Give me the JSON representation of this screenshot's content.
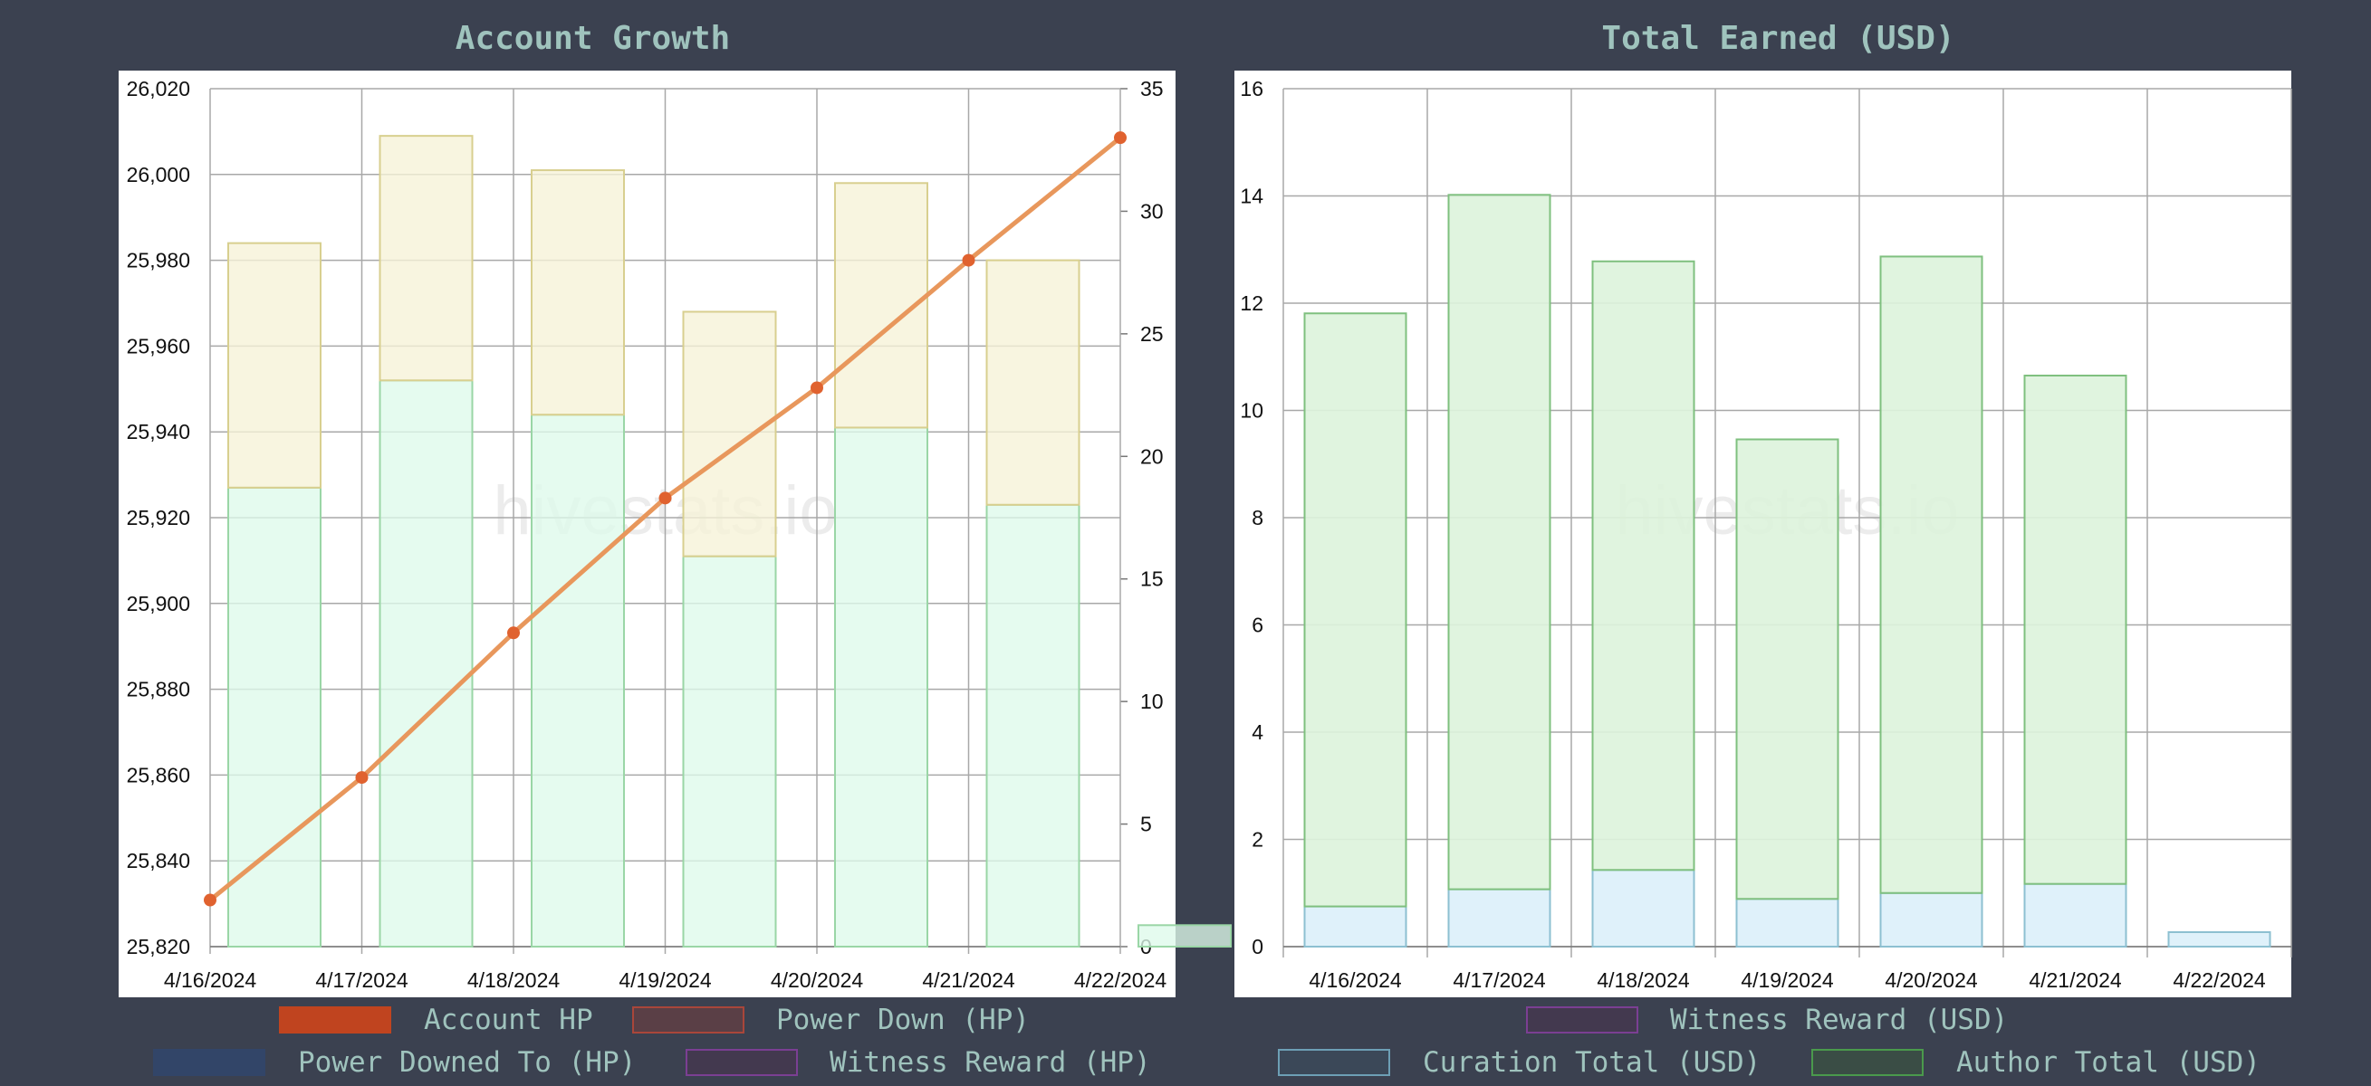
{
  "watermark": "hivestats.io",
  "chart_data": [
    {
      "type": "bar",
      "title": "Account Growth",
      "categories": [
        "4/16/2024",
        "4/17/2024",
        "4/18/2024",
        "4/19/2024",
        "4/20/2024",
        "4/21/2024",
        "4/22/2024"
      ],
      "y_left": {
        "ylim": [
          25820,
          26020
        ],
        "ticks": [
          "25,820",
          "25,840",
          "25,860",
          "25,880",
          "25,900",
          "25,920",
          "25,940",
          "25,960",
          "25,980",
          "26,000",
          "26,020"
        ]
      },
      "y_right": {
        "ylim": [
          0,
          35
        ],
        "ticks": [
          "0",
          "5",
          "10",
          "15",
          "20",
          "25",
          "30",
          "35"
        ]
      },
      "grid": true,
      "bar_series": [
        {
          "name": "Power Downed To (HP)",
          "axis": "left",
          "fill": "#defaea",
          "stroke": "#9ad6a6",
          "values": [
            25927,
            25952,
            25944,
            25911,
            25941,
            25923,
            25825
          ]
        },
        {
          "name": "Power Down (HP)",
          "axis": "left",
          "fill": "#f6f2d7",
          "stroke": "#d8cf8f",
          "values": [
            25984,
            26009,
            26001,
            25968,
            25998,
            25980,
            null
          ]
        }
      ],
      "line_series": [
        {
          "name": "Account HP",
          "axis": "right",
          "color": "#e8975c",
          "point_color": "#e0622f",
          "values": [
            1.9,
            6.9,
            12.8,
            18.3,
            22.8,
            28.0,
            33.0
          ]
        }
      ],
      "legend": {
        "rows": [
          [
            {
              "label": "Account HP",
              "fill": "#c0441f",
              "border": "#c0441f"
            },
            {
              "label": "Power Down (HP)",
              "fill": "#5a3f46",
              "border": "#a9463a"
            }
          ],
          [
            {
              "label": "Power Downed To (HP)",
              "fill": "#324568",
              "border": "#324568"
            },
            {
              "label": "Witness Reward (HP)",
              "fill": "#43394f",
              "border": "#7b3f93"
            }
          ]
        ]
      }
    },
    {
      "type": "bar",
      "title": "Total Earned (USD)",
      "categories": [
        "4/16/2024",
        "4/17/2024",
        "4/18/2024",
        "4/19/2024",
        "4/20/2024",
        "4/21/2024",
        "4/22/2024"
      ],
      "y_left": {
        "ylim": [
          0,
          16
        ],
        "ticks": [
          "0",
          "2",
          "4",
          "6",
          "8",
          "10",
          "12",
          "14",
          "16"
        ]
      },
      "grid": true,
      "stacked": true,
      "series": [
        {
          "name": "Curation Total (USD)",
          "fill": "#dcf0fa",
          "stroke": "#8dc0d1",
          "values": [
            0.75,
            1.07,
            1.43,
            0.89,
            1.0,
            1.17,
            0.27
          ]
        },
        {
          "name": "Author Total (USD)",
          "fill": "#ddf3dc",
          "stroke": "#7fc07f",
          "values": [
            11.06,
            12.95,
            11.35,
            8.57,
            11.87,
            9.48,
            0
          ]
        }
      ],
      "legend": {
        "rows": [
          [
            {
              "label": "Witness Reward (USD)",
              "fill": "#43394f",
              "border": "#7b3f93"
            }
          ],
          [
            {
              "label": "Curation Total (USD)",
              "fill": "#3b4858",
              "border": "#6d9fb5"
            },
            {
              "label": "Author Total (USD)",
              "fill": "#3a4d45",
              "border": "#4a9a4c"
            }
          ]
        ]
      }
    }
  ]
}
